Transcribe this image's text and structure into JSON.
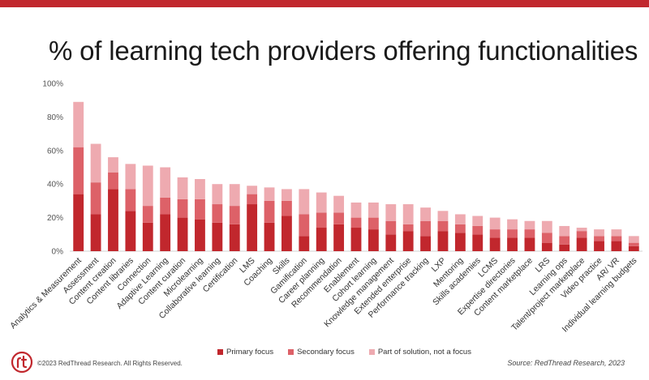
{
  "page": {
    "copyright": "©2023 RedThread Research. All Rights Reserved.",
    "source": "Source: RedThread Research, 2023"
  },
  "colors": {
    "bar_top": "#c1272d",
    "primary": "#c1272d",
    "secondary": "#dd6168",
    "part": "#eeaab0",
    "logo": "#c1272d"
  },
  "chart_data": {
    "type": "bar",
    "stacked": true,
    "title": "% of learning tech providers offering functionalities",
    "ylim": [
      0,
      100
    ],
    "yticks": [
      "0%",
      "20%",
      "40%",
      "60%",
      "80%",
      "100%"
    ],
    "grid": false,
    "legend_position": "bottom",
    "categories": [
      "Analytics & Measurement",
      "Assessment",
      "Content creation",
      "Content libraries",
      "Connection",
      "Adaptive Learning",
      "Content curation",
      "Microlearning",
      "Collaborative learning",
      "Certification",
      "LMS",
      "Coaching",
      "Skills",
      "Gamification",
      "Career planning",
      "Recommendation",
      "Enablement",
      "Cohort learning",
      "Knowledge management",
      "Extended enterprise",
      "Performance tracking",
      "LXP",
      "Mentoring",
      "Skills academies",
      "LCMS",
      "Expertise directories",
      "Content marketplace",
      "LRS",
      "Learning ops",
      "Talent/project marketplace",
      "Video practice",
      "AR/ VR",
      "Individual learning budgets"
    ],
    "series": [
      {
        "name": "Primary focus",
        "values": [
          34,
          22,
          37,
          24,
          17,
          22,
          20,
          19,
          17,
          16,
          28,
          17,
          21,
          9,
          14,
          16,
          14,
          13,
          10,
          12,
          9,
          12,
          11,
          10,
          8,
          8,
          8,
          5,
          4,
          8,
          6,
          6,
          3
        ]
      },
      {
        "name": "Secondary focus",
        "values": [
          28,
          19,
          10,
          13,
          10,
          10,
          11,
          12,
          11,
          11,
          6,
          13,
          9,
          13,
          9,
          7,
          6,
          7,
          8,
          4,
          9,
          6,
          5,
          5,
          5,
          5,
          5,
          6,
          5,
          4,
          3,
          3,
          2
        ]
      },
      {
        "name": "Part of solution, not a focus",
        "values": [
          27,
          23,
          9,
          15,
          24,
          18,
          13,
          12,
          12,
          13,
          5,
          8,
          7,
          15,
          12,
          10,
          9,
          9,
          10,
          12,
          8,
          6,
          6,
          6,
          7,
          6,
          5,
          7,
          6,
          2,
          4,
          4,
          4
        ]
      }
    ]
  }
}
